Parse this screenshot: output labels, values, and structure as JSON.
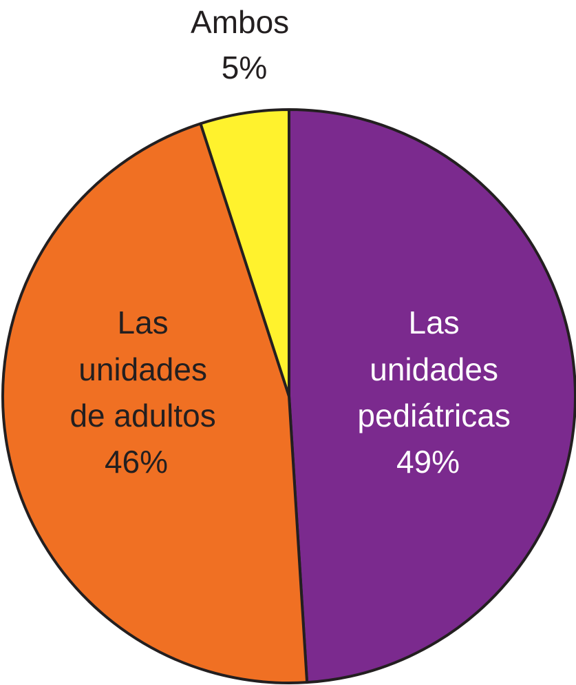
{
  "chart_data": {
    "type": "pie",
    "title": "",
    "slices": [
      {
        "lines": [
          "Las",
          "unidades",
          "pediátricas"
        ],
        "value": 49,
        "value_label": "49%",
        "color": "#7b2a8e",
        "text_color": "#ffffff"
      },
      {
        "lines": [
          "Las",
          "unidades",
          "de adultos"
        ],
        "value": 46,
        "value_label": "46%",
        "color": "#f07023",
        "text_color": "#231f20"
      },
      {
        "lines": [
          "Ambos"
        ],
        "value": 5,
        "value_label": "5%",
        "color": "#fff22d",
        "text_color": "#231f20"
      }
    ],
    "start": "top",
    "direction": "clockwise",
    "outline_color": "#231f20"
  }
}
